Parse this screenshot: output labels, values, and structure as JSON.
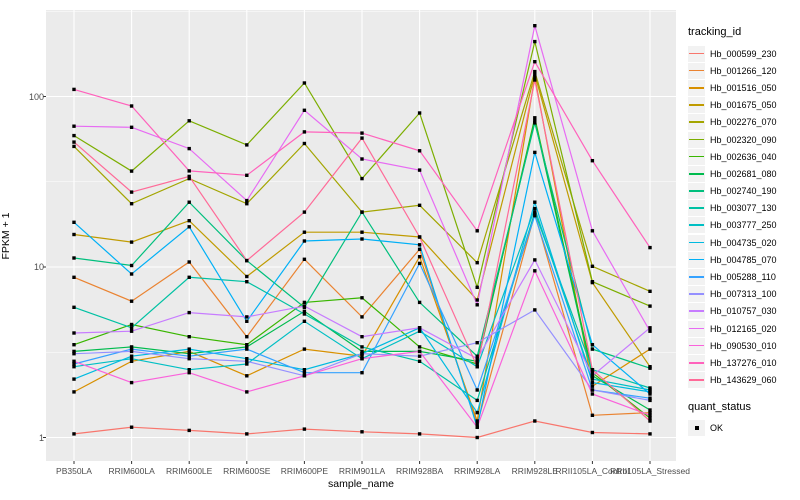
{
  "chart_data": {
    "type": "line",
    "xlabel": "sample_name",
    "ylabel": "FPKM + 1",
    "y_scale": "log10",
    "y_ticks": [
      1,
      10,
      100
    ],
    "ylim": [
      0.85,
      330
    ],
    "grid": true,
    "legend_position": "right",
    "panel_bg": "#EBEBEB",
    "grid_color": "#FFFFFF",
    "point_color": "#000000",
    "tick_label_color": "#4D4D4D",
    "categories": [
      "PB350LA",
      "RRIM600LA",
      "RRIM600LE",
      "RRIM600SE",
      "RRIM600PE",
      "RRIM901LA",
      "RRIM928BA",
      "RRIM928LA",
      "RRIM928LE",
      "RRII105LA_Control",
      "RRII105LA_Stressed"
    ],
    "legend": {
      "tracking_title": "tracking_id",
      "quant_title": "quant_status",
      "quant_ok_label": "OK"
    },
    "series": [
      {
        "name": "Hb_000599_230",
        "color": "#F8766D",
        "values": [
          1.05,
          1.15,
          1.1,
          1.05,
          1.12,
          1.08,
          1.05,
          1.0,
          1.25,
          1.07,
          1.05
        ]
      },
      {
        "name": "Hb_001266_120",
        "color": "#EA8331",
        "values": [
          8.7,
          6.3,
          10.7,
          3.9,
          11.1,
          5.1,
          12.7,
          1.2,
          20.5,
          1.35,
          1.4
        ]
      },
      {
        "name": "Hb_001516_050",
        "color": "#D89000",
        "values": [
          1.85,
          2.8,
          3.2,
          2.3,
          3.3,
          3.0,
          11.5,
          1.25,
          130,
          2.0,
          3.3
        ]
      },
      {
        "name": "Hb_001675_050",
        "color": "#C09B00",
        "values": [
          15.5,
          14.0,
          18.7,
          8.8,
          16.0,
          16.0,
          15.0,
          6.4,
          135,
          8.1,
          2.6
        ]
      },
      {
        "name": "Hb_002276_070",
        "color": "#A3A500",
        "values": [
          51,
          23.5,
          33,
          23.5,
          53,
          21,
          23,
          10.6,
          140,
          10.1,
          7.2
        ]
      },
      {
        "name": "Hb_002320_090",
        "color": "#7CAE00",
        "values": [
          59,
          36.5,
          72,
          52,
          120,
          33,
          80,
          7.6,
          210,
          8.2,
          5.9
        ]
      },
      {
        "name": "Hb_002636_040",
        "color": "#39B600",
        "values": [
          3.5,
          4.6,
          3.9,
          3.5,
          6.2,
          6.6,
          3.4,
          2.7,
          75,
          2.4,
          1.3
        ]
      },
      {
        "name": "Hb_002681_080",
        "color": "#00BB4E",
        "values": [
          3.2,
          3.4,
          3.1,
          3.4,
          5.5,
          3.2,
          3.2,
          2.8,
          72,
          2.3,
          1.45
        ]
      },
      {
        "name": "Hb_002740_190",
        "color": "#00BF7D",
        "values": [
          11.3,
          10.2,
          24,
          10.9,
          5.8,
          21,
          6.2,
          3.0,
          70,
          3.3,
          2.55
        ]
      },
      {
        "name": "Hb_003077_130",
        "color": "#00C1A3",
        "values": [
          5.8,
          4.4,
          8.7,
          8.2,
          5.3,
          3.4,
          2.8,
          1.65,
          21,
          2.5,
          1.95
        ]
      },
      {
        "name": "Hb_003777_250",
        "color": "#00BFC4",
        "values": [
          2.6,
          2.9,
          2.5,
          2.7,
          4.8,
          2.9,
          4.2,
          2.6,
          22,
          2.2,
          1.9
        ]
      },
      {
        "name": "Hb_004735_020",
        "color": "#00BAE0",
        "values": [
          2.2,
          3.0,
          3.3,
          2.9,
          2.5,
          3.1,
          4.4,
          1.4,
          24,
          2.1,
          1.85
        ]
      },
      {
        "name": "Hb_004785_070",
        "color": "#00B0F6",
        "values": [
          18.3,
          9.1,
          17.2,
          4.8,
          14.2,
          14.6,
          13.5,
          1.15,
          47,
          3.5,
          1.8
        ]
      },
      {
        "name": "Hb_005288_110",
        "color": "#35A2FF",
        "values": [
          2.7,
          3.3,
          3.0,
          3.3,
          2.4,
          2.4,
          10.5,
          1.9,
          20,
          1.9,
          1.7
        ]
      },
      {
        "name": "Hb_007313_100",
        "color": "#9590FF",
        "values": [
          3.1,
          3.2,
          2.9,
          2.8,
          2.3,
          3.1,
          3.0,
          3.6,
          5.6,
          1.9,
          1.65
        ]
      },
      {
        "name": "Hb_010757_030",
        "color": "#C77CFF",
        "values": [
          4.1,
          4.2,
          5.4,
          5.1,
          5.9,
          3.9,
          4.4,
          2.9,
          11,
          2.3,
          4.4
        ]
      },
      {
        "name": "Hb_012165_020",
        "color": "#E76BF3",
        "values": [
          67,
          66,
          49.5,
          24.5,
          83,
          43,
          37,
          6.0,
          260,
          16.3,
          4.2
        ]
      },
      {
        "name": "Hb_090530_010",
        "color": "#FA62DB",
        "values": [
          2.8,
          2.1,
          2.4,
          1.85,
          2.3,
          2.9,
          3.2,
          1.15,
          9.5,
          1.8,
          1.35
        ]
      },
      {
        "name": "Hb_137276_010",
        "color": "#FF62BC",
        "values": [
          110,
          88,
          36.6,
          34.5,
          62,
          61,
          48,
          16.3,
          160,
          42,
          13
        ]
      },
      {
        "name": "Hb_143629_060",
        "color": "#FF6A98",
        "values": [
          54,
          27.5,
          34,
          10.9,
          21,
          57,
          15,
          2.6,
          125,
          2.5,
          1.25
        ]
      }
    ]
  }
}
